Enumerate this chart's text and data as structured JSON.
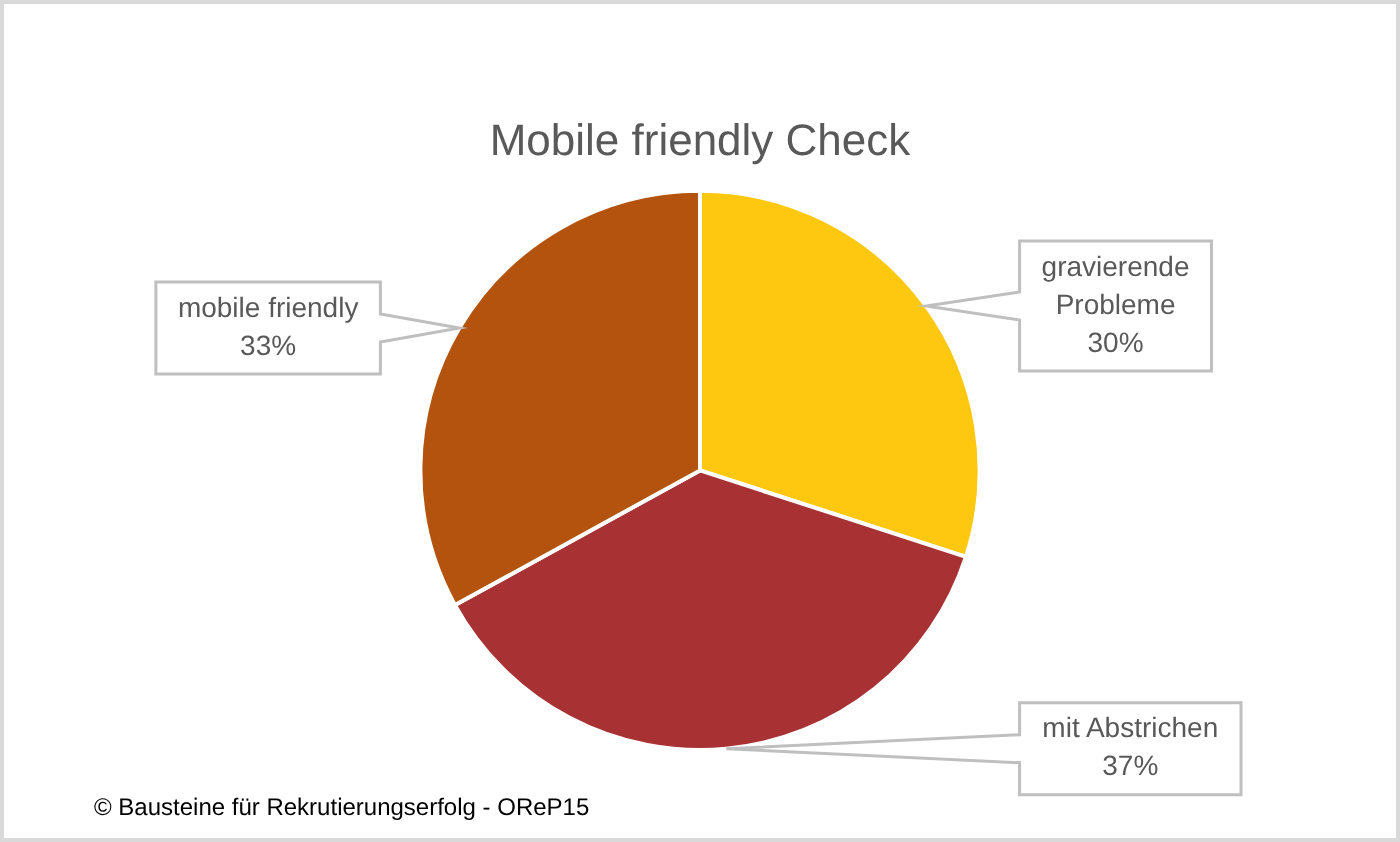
{
  "chart_data": {
    "type": "pie",
    "title": "Mobile friendly Check",
    "categories": [
      "gravierende Probleme",
      "mit Abstrichen",
      "mobile friendly"
    ],
    "values": [
      30,
      37,
      33
    ],
    "colors": [
      "#fec810",
      "#a83133",
      "#b3530e"
    ],
    "value_labels": [
      "30%",
      "37%",
      "33%"
    ],
    "annotations": [
      "© Bausteine für Rekrutierungserfolg - OReP15"
    ]
  }
}
